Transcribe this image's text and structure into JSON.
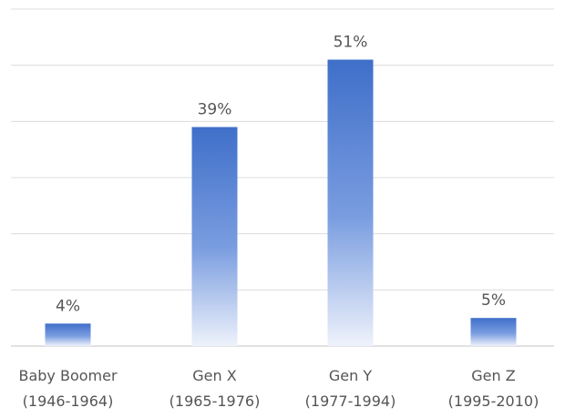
{
  "chart_data": {
    "type": "bar",
    "categories": [
      [
        "Baby Boomer",
        "(1946-1964)"
      ],
      [
        "Gen X",
        "(1965-1976)"
      ],
      [
        "Gen Y",
        "(1977-1994)"
      ],
      [
        "Gen Z",
        "(1995-2010)"
      ]
    ],
    "values": [
      4,
      39,
      51,
      5
    ],
    "value_labels": [
      "4%",
      "39%",
      "51%",
      "5%"
    ],
    "title": "",
    "xlabel": "",
    "ylabel": "",
    "ylim": [
      0,
      60
    ],
    "grid": true,
    "bar_color_top": "#3f6fc9",
    "bar_color_bottom": "#eef2fb"
  }
}
